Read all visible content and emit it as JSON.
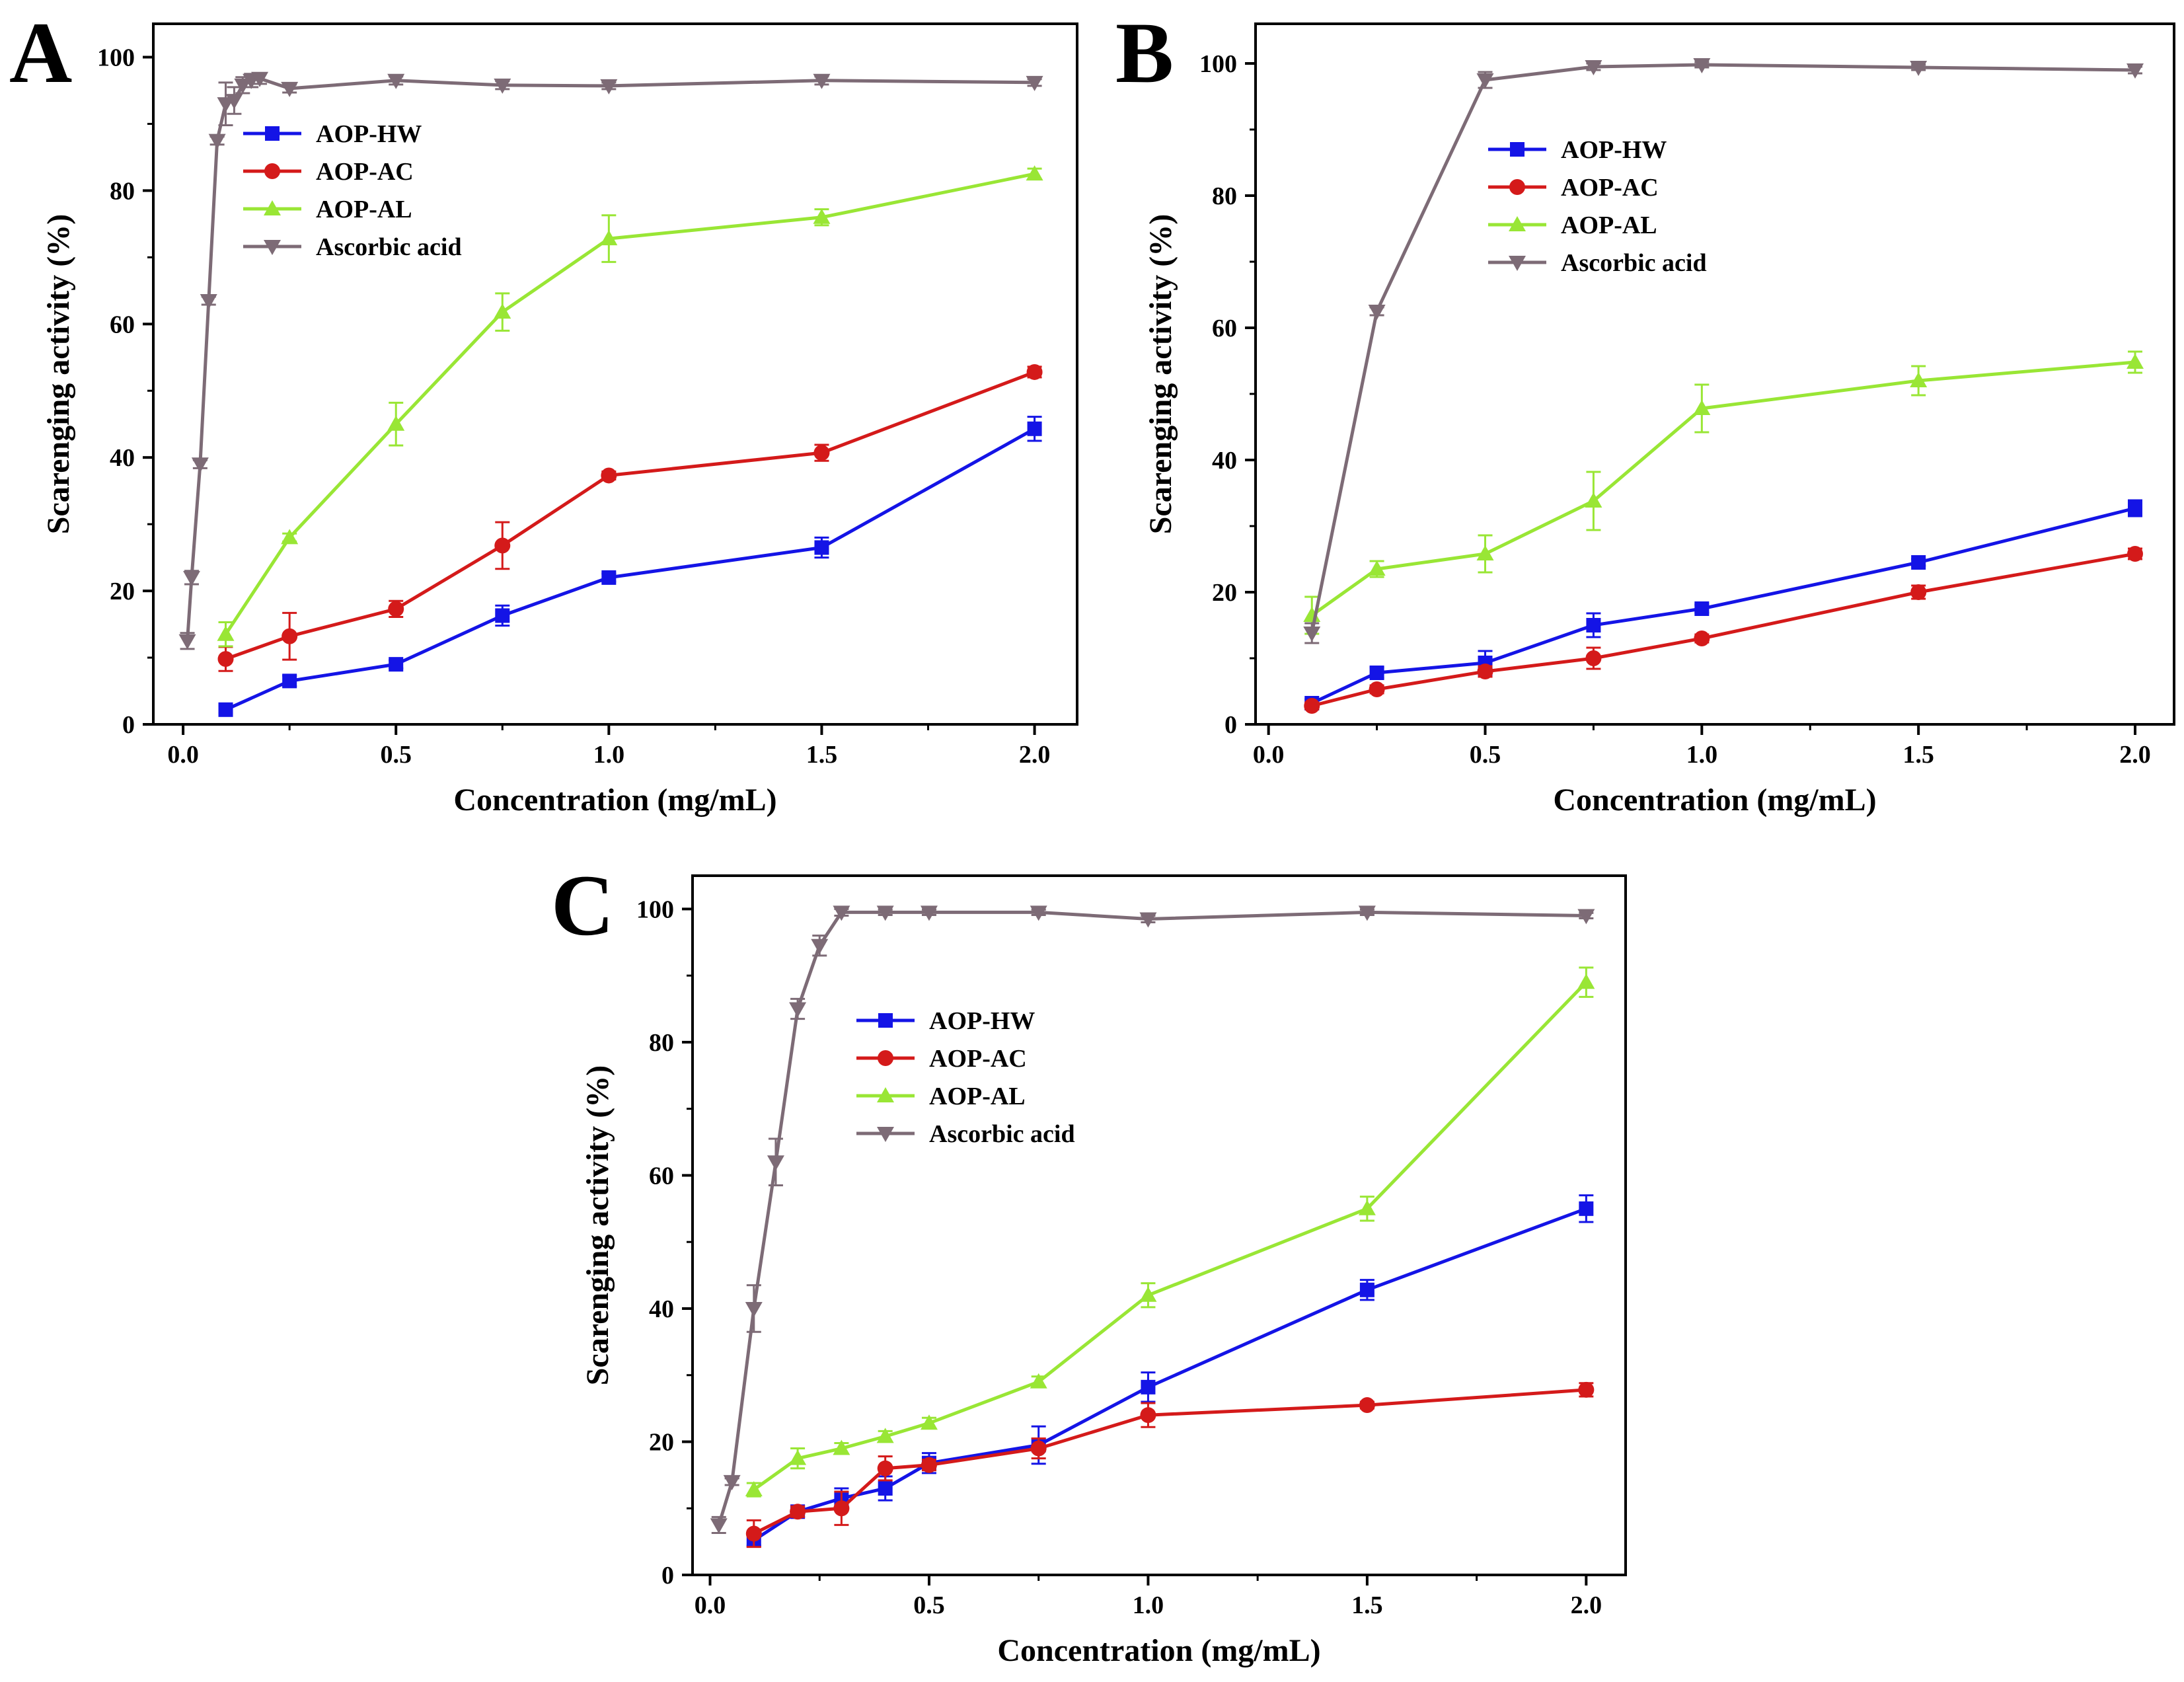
{
  "chart_data": [
    {
      "type": "line",
      "panel_label": "A",
      "xlabel": "Concentration (mg/mL)",
      "ylabel": "Scarenging activity (%)",
      "xlim": [
        -0.07,
        2.1
      ],
      "ylim": [
        0,
        105
      ],
      "xticks": [
        "0.0",
        "0.5",
        "1.0",
        "1.5",
        "2.0"
      ],
      "yticks": [
        "0",
        "20",
        "40",
        "60",
        "80",
        "100"
      ],
      "legend_position": "upper-left",
      "series": [
        {
          "name": "AOP-HW",
          "color": "#1414e6",
          "marker": "square",
          "x": [
            0.1,
            0.25,
            0.5,
            0.75,
            1.0,
            1.5,
            2.0
          ],
          "y": [
            2.2,
            6.5,
            9.0,
            16.3,
            22.0,
            26.5,
            44.3
          ],
          "err": [
            0.5,
            0.8,
            0.6,
            1.5,
            0.6,
            1.5,
            1.8
          ]
        },
        {
          "name": "AOP-AC",
          "color": "#d41a1a",
          "marker": "circle",
          "x": [
            0.1,
            0.25,
            0.5,
            0.75,
            1.0,
            1.5,
            2.0
          ],
          "y": [
            9.8,
            13.2,
            17.3,
            26.8,
            37.3,
            40.7,
            52.8
          ],
          "err": [
            1.8,
            3.5,
            1.2,
            3.5,
            0.6,
            1.2,
            0.8
          ]
        },
        {
          "name": "AOP-AL",
          "color": "#99e635",
          "marker": "triangle-up",
          "x": [
            0.1,
            0.25,
            0.5,
            0.75,
            1.0,
            1.5,
            2.0
          ],
          "y": [
            13.5,
            28.0,
            45.0,
            61.8,
            72.8,
            76.0,
            82.5
          ],
          "err": [
            1.8,
            0.6,
            3.2,
            2.8,
            3.5,
            1.2,
            0.8
          ]
        },
        {
          "name": "Ascorbic acid",
          "color": "#7d6b76",
          "marker": "triangle-down",
          "x": [
            0.01,
            0.02,
            0.04,
            0.06,
            0.08,
            0.1,
            0.12,
            0.14,
            0.16,
            0.18,
            0.25,
            0.5,
            0.75,
            1.0,
            1.5,
            2.0
          ],
          "y": [
            12.5,
            22.0,
            39.0,
            63.5,
            87.5,
            93.0,
            93.5,
            95.8,
            96.5,
            96.8,
            95.3,
            96.5,
            95.8,
            95.7,
            96.5,
            96.2
          ],
          "err": [
            1.2,
            1.0,
            0.6,
            0.6,
            0.6,
            3.2,
            2.0,
            1.2,
            1.0,
            0.8,
            0.6,
            0.6,
            0.6,
            0.5,
            0.6,
            0.5
          ]
        }
      ]
    },
    {
      "type": "line",
      "panel_label": "B",
      "xlabel": "Concentration (mg/mL)",
      "ylabel": "Scarenging activity (%)",
      "xlim": [
        -0.03,
        2.09
      ],
      "ylim": [
        0,
        106
      ],
      "xticks": [
        "0.0",
        "0.5",
        "1.0",
        "1.5",
        "2.0"
      ],
      "yticks": [
        "0",
        "20",
        "40",
        "60",
        "80",
        "100"
      ],
      "legend_position": "upper-left",
      "series": [
        {
          "name": "AOP-HW",
          "color": "#1414e6",
          "marker": "square",
          "x": [
            0.1,
            0.25,
            0.5,
            0.75,
            1.0,
            1.5,
            2.0
          ],
          "y": [
            3.2,
            7.8,
            9.3,
            15.0,
            17.5,
            24.5,
            32.7
          ],
          "err": [
            0.6,
            0.8,
            1.8,
            1.8,
            0.6,
            0.5,
            1.2
          ]
        },
        {
          "name": "AOP-AC",
          "color": "#d41a1a",
          "marker": "circle",
          "x": [
            0.1,
            0.25,
            0.5,
            0.75,
            1.0,
            1.5,
            2.0
          ],
          "y": [
            2.8,
            5.3,
            8.0,
            10.0,
            13.0,
            20.0,
            25.8
          ],
          "err": [
            0.5,
            0.6,
            0.8,
            1.6,
            0.6,
            1.0,
            0.8
          ]
        },
        {
          "name": "AOP-AL",
          "color": "#99e635",
          "marker": "triangle-up",
          "x": [
            0.1,
            0.25,
            0.5,
            0.75,
            1.0,
            1.5,
            2.0
          ],
          "y": [
            16.5,
            23.5,
            25.8,
            33.8,
            47.8,
            52.0,
            54.8
          ],
          "err": [
            2.8,
            1.2,
            2.8,
            4.4,
            3.6,
            2.2,
            1.6
          ]
        },
        {
          "name": "Ascorbic acid",
          "color": "#7d6b76",
          "marker": "triangle-down",
          "x": [
            0.1,
            0.25,
            0.5,
            0.75,
            1.0,
            1.5,
            2.0
          ],
          "y": [
            13.8,
            62.5,
            97.5,
            99.5,
            99.8,
            99.4,
            99.0
          ],
          "err": [
            1.5,
            0.6,
            1.2,
            0.5,
            0.4,
            0.4,
            0.5
          ]
        }
      ]
    },
    {
      "type": "line",
      "panel_label": "C",
      "xlabel": "Concentration (mg/mL)",
      "ylabel": "Scarenging activity (%)",
      "xlim": [
        -0.04,
        2.09
      ],
      "ylim": [
        0,
        105
      ],
      "xticks": [
        "0.0",
        "0.5",
        "1.0",
        "1.5",
        "2.0"
      ],
      "yticks": [
        "0",
        "20",
        "40",
        "60",
        "80",
        "100"
      ],
      "legend_position": "upper-left",
      "series": [
        {
          "name": "AOP-HW",
          "color": "#1414e6",
          "marker": "square",
          "x": [
            0.1,
            0.2,
            0.3,
            0.4,
            0.5,
            0.75,
            1.0,
            1.5,
            2.0
          ],
          "y": [
            5.2,
            9.5,
            11.5,
            13.0,
            16.8,
            19.5,
            28.2,
            42.8,
            55.0
          ],
          "err": [
            0.8,
            0.8,
            1.5,
            1.8,
            1.5,
            2.8,
            2.2,
            1.5,
            2.0
          ]
        },
        {
          "name": "AOP-AC",
          "color": "#d41a1a",
          "marker": "circle",
          "x": [
            0.1,
            0.2,
            0.3,
            0.4,
            0.5,
            0.75,
            1.0,
            1.5,
            2.0
          ],
          "y": [
            6.2,
            9.5,
            10.0,
            16.0,
            16.5,
            19.0,
            24.0,
            25.5,
            27.8
          ],
          "err": [
            2.0,
            0.8,
            2.5,
            1.8,
            0.8,
            1.5,
            1.8,
            0.5,
            1.0
          ]
        },
        {
          "name": "AOP-AL",
          "color": "#99e635",
          "marker": "triangle-up",
          "x": [
            0.1,
            0.2,
            0.3,
            0.4,
            0.5,
            0.75,
            1.0,
            1.5,
            2.0
          ],
          "y": [
            12.8,
            17.5,
            19.0,
            20.8,
            22.8,
            29.0,
            42.0,
            55.0,
            89.0
          ],
          "err": [
            1.0,
            1.5,
            0.8,
            0.8,
            0.8,
            0.8,
            1.8,
            1.8,
            2.2
          ]
        },
        {
          "name": "Ascorbic acid",
          "color": "#7d6b76",
          "marker": "triangle-down",
          "x": [
            0.02,
            0.05,
            0.1,
            0.15,
            0.2,
            0.25,
            0.3,
            0.4,
            0.5,
            0.75,
            1.0,
            1.5,
            2.0
          ],
          "y": [
            7.5,
            14.0,
            40.0,
            62.0,
            85.0,
            94.5,
            99.5,
            99.5,
            99.5,
            99.5,
            98.5,
            99.5,
            99.0
          ],
          "err": [
            1.2,
            0.5,
            3.5,
            3.5,
            1.5,
            1.5,
            0.5,
            0.4,
            0.4,
            0.4,
            0.5,
            0.4,
            0.4
          ]
        }
      ]
    }
  ]
}
